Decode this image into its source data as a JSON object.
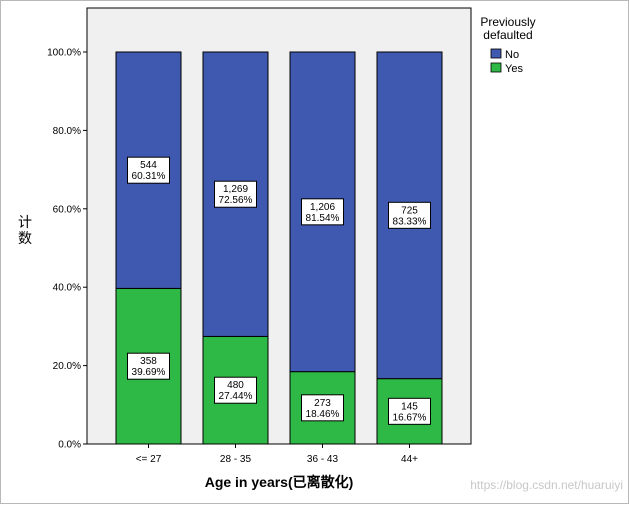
{
  "chart_data": {
    "type": "bar",
    "stacked": true,
    "percent_stacked": true,
    "xlabel": "Age in years(已离散化)",
    "ylabel": "计数",
    "categories": [
      "<= 27",
      "28 - 35",
      "36 - 43",
      "44+"
    ],
    "series": [
      {
        "name": "Yes",
        "color": "#2eb845",
        "counts": [
          "358",
          "480",
          "273",
          "145"
        ],
        "percents": [
          "39.69%",
          "27.44%",
          "18.46%",
          "16.67%"
        ],
        "values": [
          39.69,
          27.44,
          18.46,
          16.67
        ]
      },
      {
        "name": "No",
        "color": "#3f58b0",
        "counts": [
          "544",
          "1,269",
          "1,206",
          "725"
        ],
        "percents": [
          "60.31%",
          "72.56%",
          "81.54%",
          "83.33%"
        ],
        "values": [
          60.31,
          72.56,
          81.54,
          83.33
        ]
      }
    ],
    "yticks": [
      "0.0%",
      "20.0%",
      "40.0%",
      "60.0%",
      "80.0%",
      "100.0%"
    ],
    "ytick_values": [
      0,
      20,
      40,
      60,
      80,
      100
    ],
    "ylim": [
      0,
      100
    ],
    "legend": {
      "title_lines": [
        "Previously",
        "defaulted"
      ],
      "placement": "top-right"
    },
    "plot_background": "#f0f0f0",
    "grid": false
  },
  "watermark": "https://blog.csdn.net/huaruiyi"
}
